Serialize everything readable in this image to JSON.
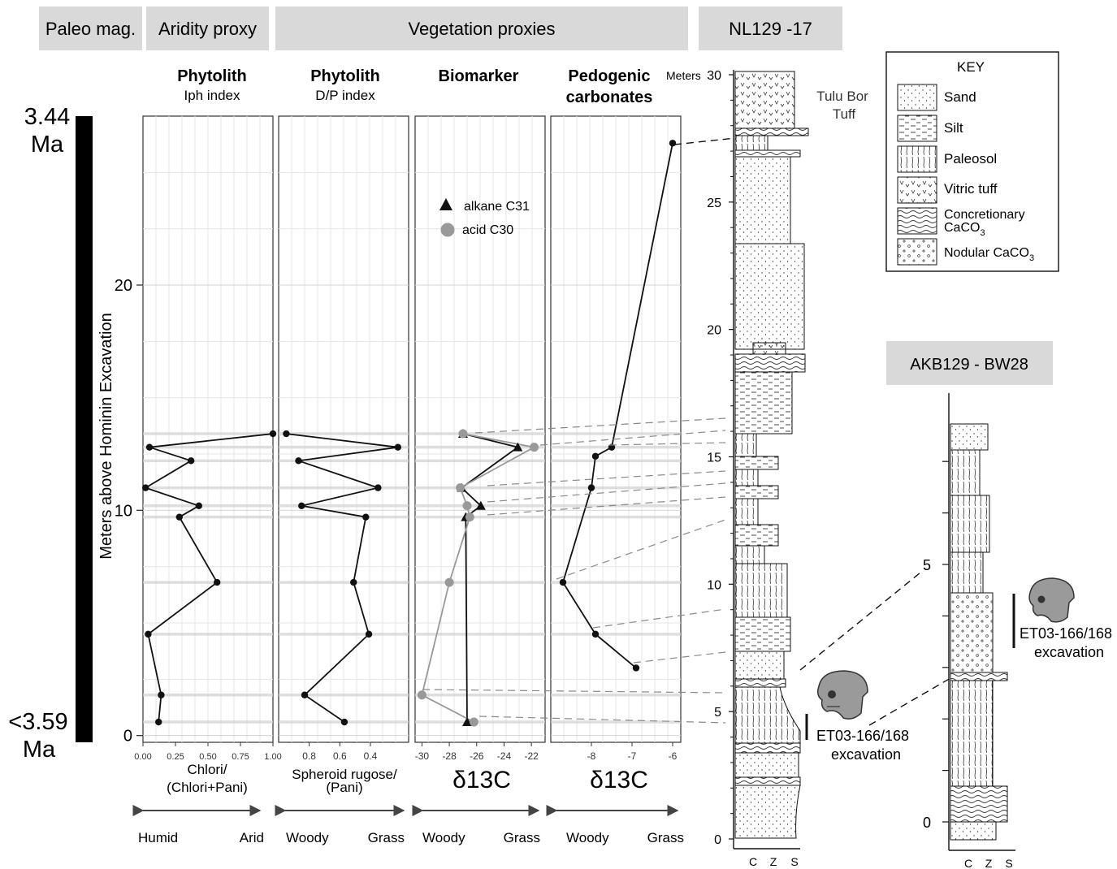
{
  "headers": [
    "Paleo mag.",
    "Aridity proxy",
    "Vegetation proxies",
    "NL129 -17"
  ],
  "ages": {
    "top_value": "3.44",
    "top_unit": "Ma",
    "bottom_value": "<3.59",
    "bottom_unit": "Ma"
  },
  "colors": {
    "series_dark": "#111111",
    "series_gray": "#999999",
    "header_bg": "#d9d9d9",
    "grid": "#e6e6e6",
    "row_band": "#d0d0d0",
    "connector": "#8a8a8a"
  },
  "shared_y": {
    "label": "Meters above Hominin Excavation",
    "ticks": [
      0,
      10,
      20
    ],
    "ylim": [
      -0.3,
      27.5
    ]
  },
  "panels": [
    {
      "id": "iph",
      "title": "Phytolith",
      "subtitle": "Iph index",
      "xlabel1": "Chlori/",
      "xlabel2": "(Chlori+Pani)",
      "left": "Humid",
      "right": "Arid"
    },
    {
      "id": "dp",
      "title": "Phytolith",
      "subtitle": "D/P index",
      "xlabel1": "Spheroid rugose/",
      "xlabel2": "(Pani)",
      "left": "Woody",
      "right": "Grass"
    },
    {
      "id": "bio",
      "title": "Biomarker",
      "subtitle": "",
      "xlabel1": "δ13C",
      "xlabel2": "",
      "left": "Woody",
      "right": "Grass"
    },
    {
      "id": "carb",
      "title": "Pedogenic",
      "subtitle": "carbonates",
      "xlabel1": "δ13C",
      "xlabel2": "",
      "left": "Woody",
      "right": "Grass"
    }
  ],
  "chart_data": [
    {
      "type": "line",
      "panel": "Phytolith Iph index",
      "x": [
        1.0,
        0.05,
        0.37,
        0.02,
        0.43,
        0.28,
        0.57,
        0.04,
        0.14,
        0.12
      ],
      "y": [
        13.4,
        12.8,
        12.2,
        11.0,
        10.2,
        9.7,
        6.8,
        4.5,
        1.8,
        0.6
      ],
      "xlim": [
        0,
        1.0
      ],
      "xticks": [
        "0.00",
        "0.25",
        "0.50",
        "0.75",
        "1.00"
      ]
    },
    {
      "type": "line",
      "panel": "Phytolith D/P index",
      "x": [
        0.95,
        0.22,
        0.87,
        0.35,
        0.85,
        0.43,
        0.51,
        0.41,
        0.83,
        0.57
      ],
      "y": [
        13.4,
        12.8,
        12.2,
        11.0,
        10.2,
        9.7,
        6.8,
        4.5,
        1.8,
        0.6
      ],
      "xlim": [
        1.0,
        0.15
      ],
      "xreversed": true,
      "xticks": [
        "0.8",
        "0.6",
        "0.4"
      ]
    },
    {
      "type": "line",
      "panel": "Biomarker",
      "xlim": [
        -30.5,
        -21
      ],
      "xticks": [
        "-30",
        "-28",
        "-26",
        "-24",
        "-22"
      ],
      "legend": [
        {
          "label": "alkane C31",
          "marker": "triangle"
        },
        {
          "label": "acid C30",
          "marker": "circle"
        }
      ],
      "series": [
        {
          "name": "alkane C31",
          "marker": "triangle",
          "x": [
            -27.0,
            -23.0,
            -27.1,
            -25.7,
            -26.8,
            -26.7
          ],
          "y": [
            13.4,
            12.8,
            11.0,
            10.2,
            9.7,
            0.6
          ]
        },
        {
          "name": "acid C30",
          "marker": "circle",
          "x": [
            -27.0,
            -21.8,
            -27.2,
            -26.7,
            -26.5,
            -28.0,
            -30.0,
            -26.2
          ],
          "y": [
            13.4,
            12.8,
            11.0,
            10.2,
            9.7,
            6.8,
            1.8,
            0.6
          ]
        }
      ]
    },
    {
      "type": "line",
      "panel": "Pedogenic carbonates",
      "x": [
        -6.0,
        -7.5,
        -7.9,
        -8.0,
        -8.7,
        -7.9,
        -6.9
      ],
      "y": [
        26.3,
        12.8,
        12.4,
        11.0,
        6.8,
        4.5,
        3.0
      ],
      "xlim": [
        -9.0,
        -5.8
      ],
      "xticks": [
        "-8",
        "-7",
        "-6"
      ]
    }
  ],
  "section1": {
    "units_label": "Meters",
    "ticks": [
      "0",
      "5",
      "10",
      "15",
      "20",
      "25",
      "30"
    ],
    "tuff_label1": "Tulu Bor",
    "tuff_label2": "Tuff",
    "grain_labels": [
      "C",
      "Z",
      "S"
    ]
  },
  "section2": {
    "title": "AKB129 - BW28",
    "ticks": [
      "0",
      "5"
    ],
    "grain_labels": [
      "C",
      "Z",
      "S"
    ]
  },
  "excavation": {
    "label1": "ET03-166/168",
    "label2": "excavation"
  },
  "key": {
    "title": "KEY",
    "items": [
      "Sand",
      "Silt",
      "Paleosol",
      "Vitric tuff",
      "Concretionary",
      "Nodular CaCO"
    ],
    "concretionary_sub": "CaCO",
    "subscript": "3"
  }
}
